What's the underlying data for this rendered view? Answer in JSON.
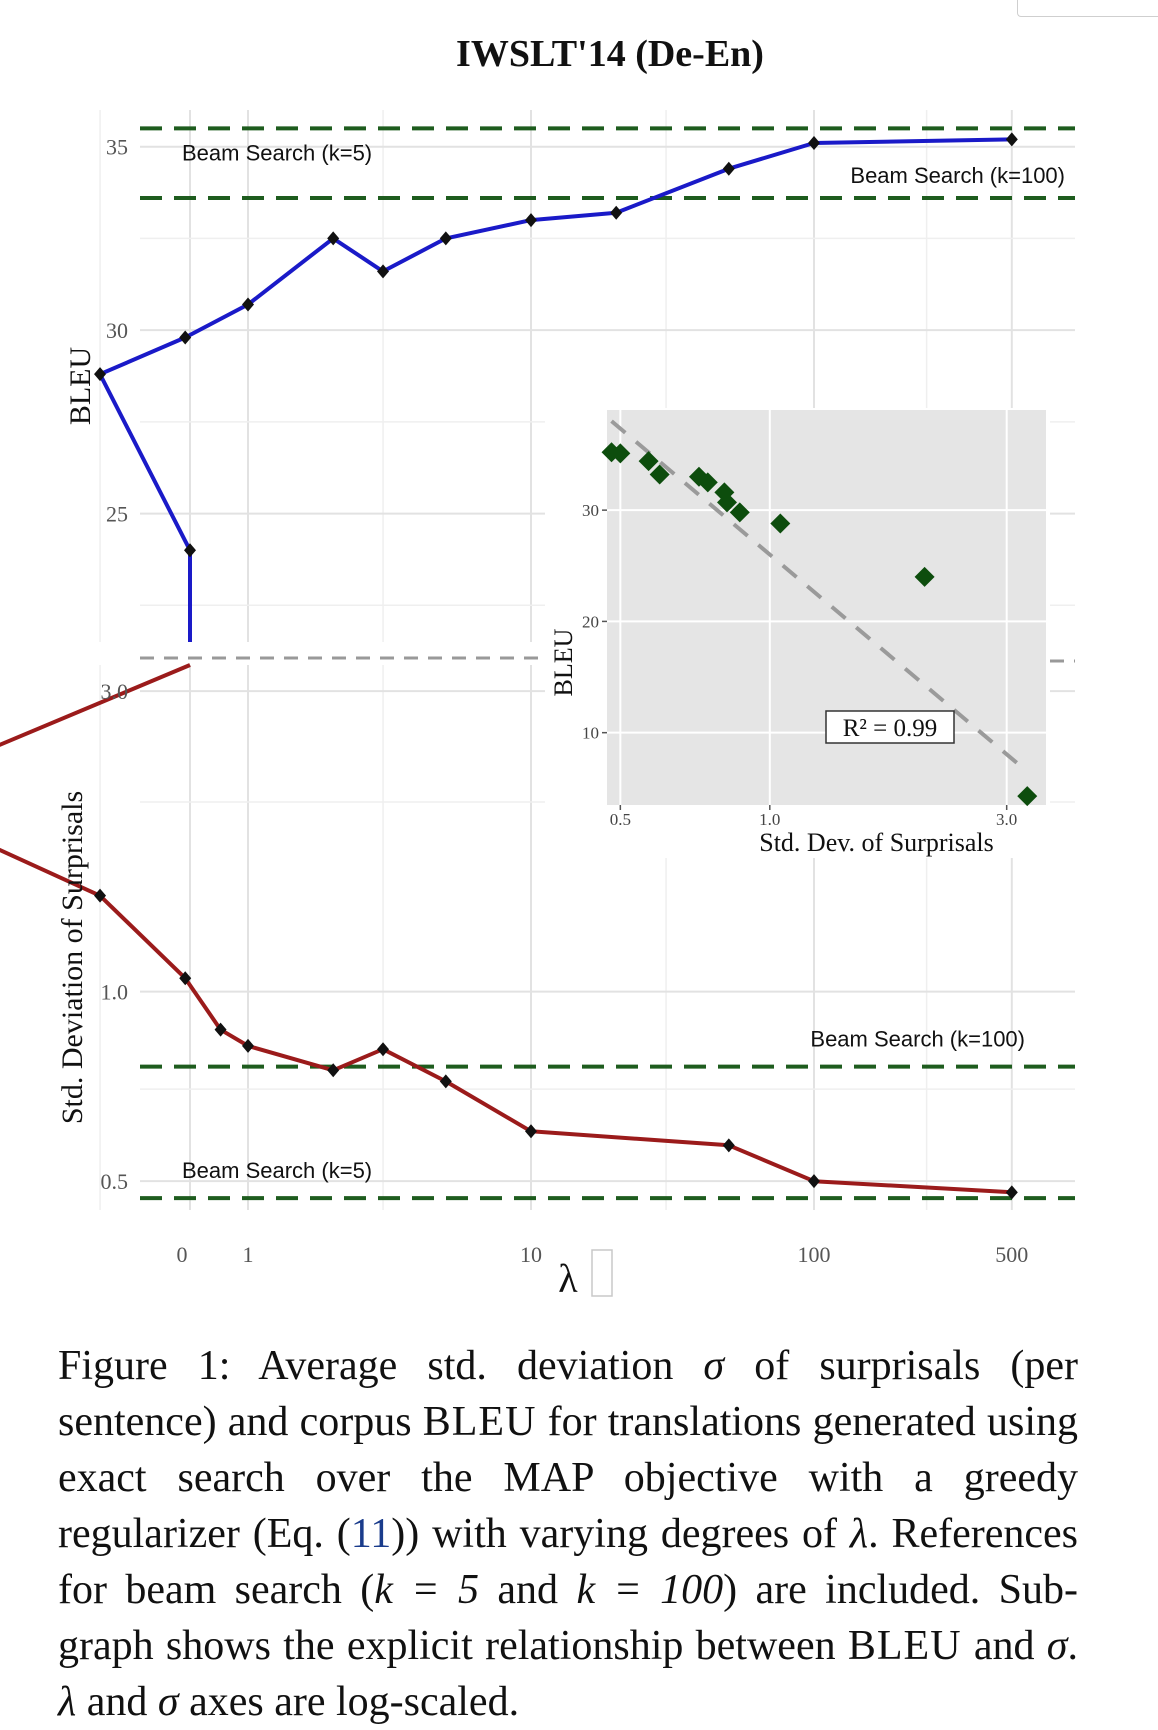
{
  "chart_data": {
    "type": "line",
    "title": "IWSLT'14 (De-En)",
    "xlabel": "λ",
    "x_scale": "log",
    "x_ticks": [
      {
        "value": 0,
        "label": "0"
      },
      {
        "value": 1,
        "label": "1"
      },
      {
        "value": 10,
        "label": "10"
      },
      {
        "value": 100,
        "label": "100"
      },
      {
        "value": 500,
        "label": "500"
      }
    ],
    "top_panel": {
      "ylabel": "BLEU",
      "ylim": [
        21.5,
        36
      ],
      "y_ticks": [
        {
          "value": 25,
          "label": "25"
        },
        {
          "value": 30,
          "label": "30"
        },
        {
          "value": 35,
          "label": "35"
        }
      ],
      "series": [
        {
          "color": "#1a1ac8",
          "x": [
            0,
            0.3,
            0.6,
            1,
            2,
            3,
            5,
            10,
            20,
            50,
            100,
            500
          ],
          "y": [
            24.0,
            28.8,
            29.8,
            30.7,
            32.5,
            31.6,
            32.5,
            33.0,
            33.2,
            34.4,
            35.1,
            35.2
          ]
        }
      ],
      "references": [
        {
          "label": "Beam Search (k=5)",
          "value": 35.5,
          "color": "#1e5c1e"
        },
        {
          "label": "Beam Search (k=100)",
          "value": 33.6,
          "color": "#1e5c1e"
        }
      ]
    },
    "bottom_panel": {
      "ylabel": "Std. Deviation of Surprisals",
      "y_scale": "log",
      "ylim": [
        0.45,
        3.3
      ],
      "y_ticks": [
        {
          "value": 0.5,
          "label": "0.5"
        },
        {
          "value": 1.0,
          "label": "1.0"
        },
        {
          "value": 3.0,
          "label": "3.0"
        }
      ],
      "series": [
        {
          "color": "#9b1b1b",
          "x": [
            0,
            0.05,
            0.3,
            0.6,
            0.8,
            1,
            2,
            3,
            5,
            10,
            50,
            100,
            500
          ],
          "y": [
            3.3,
            2.05,
            1.42,
            1.05,
            0.87,
            0.82,
            0.75,
            0.81,
            0.72,
            0.6,
            0.57,
            0.5,
            0.48
          ]
        }
      ],
      "references": [
        {
          "label": "Beam Search (k=100)",
          "value": 0.76,
          "color": "#1e5c1e"
        },
        {
          "label": "Beam Search (k=5)",
          "value": 0.47,
          "color": "#1e5c1e"
        }
      ]
    },
    "inset": {
      "type": "scatter",
      "xlabel": "Std. Dev. of Surprisals",
      "ylabel": "BLEU",
      "x_scale": "log",
      "xlim": [
        0.47,
        3.6
      ],
      "ylim": [
        3.5,
        39
      ],
      "x_ticks": [
        {
          "value": 0.5,
          "label": "0.5"
        },
        {
          "value": 1.0,
          "label": "1.0"
        },
        {
          "value": 3.0,
          "label": "3.0"
        }
      ],
      "y_ticks": [
        {
          "value": 10,
          "label": "10"
        },
        {
          "value": 20,
          "label": "20"
        },
        {
          "value": 30,
          "label": "30"
        }
      ],
      "points": [
        {
          "x": 0.48,
          "y": 35.2
        },
        {
          "x": 0.5,
          "y": 35.1
        },
        {
          "x": 0.57,
          "y": 34.4
        },
        {
          "x": 0.6,
          "y": 33.2
        },
        {
          "x": 0.72,
          "y": 33.0
        },
        {
          "x": 0.75,
          "y": 32.5
        },
        {
          "x": 0.81,
          "y": 31.6
        },
        {
          "x": 0.82,
          "y": 30.7
        },
        {
          "x": 0.87,
          "y": 29.8
        },
        {
          "x": 1.05,
          "y": 28.8
        },
        {
          "x": 2.05,
          "y": 24.0
        },
        {
          "x": 3.3,
          "y": 4.3
        }
      ],
      "fit_line": {
        "x": [
          0.48,
          3.3
        ],
        "y": [
          38.0,
          6.5
        ]
      },
      "annotation": "R² = 0.99",
      "point_color": "#0d4d0d",
      "background": "#e5e5e5"
    }
  },
  "caption": {
    "label": "Figure 1:",
    "part1": "Average std. deviation",
    "sigma": "σ",
    "part2": "of surprisals (per sentence) and corpus",
    "bleu1": "BLEU",
    "part3": "for translations generated using exact search over the MAP objective with a greedy regularizer (Eq. (",
    "ref": "11",
    "part4": ")) with varying degrees of",
    "lambda": "λ",
    "part5": ". References for beam search (",
    "k1": "k = 5",
    "part6": "and",
    "k2": "k = 100",
    "part7": ") are included. Sub-graph shows the explicit relationship between",
    "bleu2": "BLEU",
    "part8": "and",
    "sigma2": "σ",
    "part9": ".",
    "lambda2": "λ",
    "part10": "and",
    "sigma3": "σ",
    "part11": "axes are log-scaled."
  }
}
